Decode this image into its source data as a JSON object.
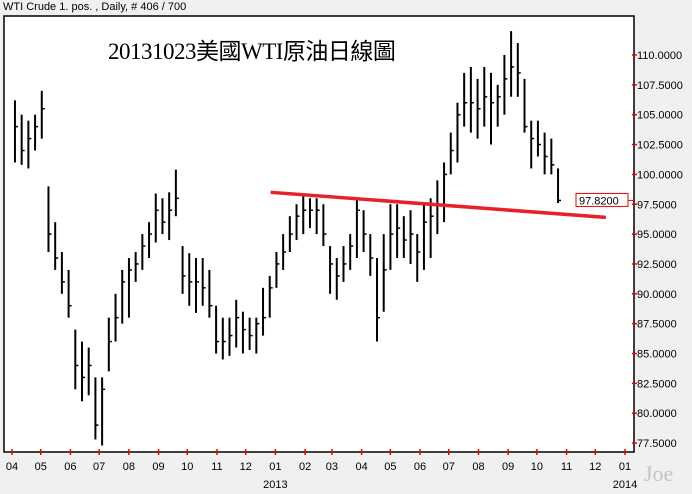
{
  "header": {
    "text": "WTI Crude 1. pos. , Daily, # 406 / 700"
  },
  "watermark": "Joe",
  "chart_data": {
    "type": "ohlc",
    "title": "20131023美國WTI原油日線圖",
    "ylim": [
      76.5,
      113.5
    ],
    "yticks": [
      77.5,
      80,
      82.5,
      85,
      87.5,
      90,
      92.5,
      95,
      97.5,
      100,
      102.5,
      105,
      107.5,
      110
    ],
    "ytick_labels": [
      "77.5000",
      "80.0000",
      "82.5000",
      "85.0000",
      "87.5000",
      "90.0000",
      "92.5000",
      "95.0000",
      "97.5000",
      "100.0000",
      "102.5000",
      "105.0000",
      "107.5000",
      "110.0000"
    ],
    "xticks": [
      {
        "date": "2012-04-01",
        "label": "04"
      },
      {
        "date": "2012-05-01",
        "label": "05"
      },
      {
        "date": "2012-06-01",
        "label": "06"
      },
      {
        "date": "2012-07-01",
        "label": "07"
      },
      {
        "date": "2012-08-01",
        "label": "08"
      },
      {
        "date": "2012-09-01",
        "label": "09"
      },
      {
        "date": "2012-10-01",
        "label": "10"
      },
      {
        "date": "2012-11-01",
        "label": "11"
      },
      {
        "date": "2012-12-01",
        "label": "12"
      },
      {
        "date": "2013-01-01",
        "label": "01"
      },
      {
        "date": "2013-02-01",
        "label": "02"
      },
      {
        "date": "2013-03-01",
        "label": "03"
      },
      {
        "date": "2013-04-01",
        "label": "04"
      },
      {
        "date": "2013-05-01",
        "label": "05"
      },
      {
        "date": "2013-06-01",
        "label": "06"
      },
      {
        "date": "2013-07-01",
        "label": "07"
      },
      {
        "date": "2013-08-01",
        "label": "08"
      },
      {
        "date": "2013-09-01",
        "label": "09"
      },
      {
        "date": "2013-10-01",
        "label": "10"
      },
      {
        "date": "2013-11-01",
        "label": "11"
      },
      {
        "date": "2013-12-01",
        "label": "12"
      },
      {
        "date": "2014-01-01",
        "label": "01"
      }
    ],
    "year_labels": [
      {
        "date": "2013-01-01",
        "label": "2013"
      },
      {
        "date": "2014-01-01",
        "label": "2014"
      }
    ],
    "last_price": {
      "label": "97.8200",
      "value": 97.82
    },
    "trendline": {
      "color": "#e8202a",
      "start": {
        "date": "2012-12-27",
        "value": 98.5
      },
      "end": {
        "date": "2013-12-12",
        "value": 96.4
      }
    },
    "bar_color": "#000000",
    "bars_columns": [
      "date",
      "high",
      "low",
      "close"
    ],
    "bars": [
      [
        "2012-04-02",
        106.2,
        101,
        104
      ],
      [
        "2012-04-09",
        105,
        100.8,
        102
      ],
      [
        "2012-04-16",
        104.5,
        100.5,
        103
      ],
      [
        "2012-04-23",
        105,
        102,
        104
      ],
      [
        "2012-04-30",
        107,
        103,
        105.5
      ],
      [
        "2012-05-07",
        99,
        93.5,
        95
      ],
      [
        "2012-05-14",
        96,
        92,
        93
      ],
      [
        "2012-05-21",
        93.5,
        90,
        91
      ],
      [
        "2012-05-28",
        92,
        88,
        89
      ],
      [
        "2012-06-04",
        87,
        82,
        84
      ],
      [
        "2012-06-11",
        86,
        81,
        83
      ],
      [
        "2012-06-18",
        85.5,
        81.5,
        84
      ],
      [
        "2012-06-25",
        83,
        77.8,
        79
      ],
      [
        "2012-07-02",
        83,
        77.3,
        82
      ],
      [
        "2012-07-09",
        88,
        83.5,
        86
      ],
      [
        "2012-07-16",
        90,
        86,
        88
      ],
      [
        "2012-07-23",
        92,
        87.5,
        91
      ],
      [
        "2012-07-30",
        93,
        88,
        92
      ],
      [
        "2012-08-06",
        93.5,
        91,
        92.5
      ],
      [
        "2012-08-13",
        95,
        92,
        94
      ],
      [
        "2012-08-20",
        96,
        93,
        95
      ],
      [
        "2012-08-27",
        98.4,
        94.3,
        97
      ],
      [
        "2012-09-03",
        98,
        95,
        96
      ],
      [
        "2012-09-10",
        98.5,
        94.5,
        97
      ],
      [
        "2012-09-17",
        100.4,
        96.5,
        98
      ],
      [
        "2012-09-24",
        94,
        90,
        91.5
      ],
      [
        "2012-10-01",
        93.4,
        89,
        91
      ],
      [
        "2012-10-08",
        93,
        88.4,
        91
      ],
      [
        "2012-10-15",
        93,
        89,
        90.5
      ],
      [
        "2012-10-22",
        92,
        88,
        89
      ],
      [
        "2012-10-29",
        89,
        85,
        86
      ],
      [
        "2012-11-05",
        88,
        84.5,
        86
      ],
      [
        "2012-11-12",
        88,
        84.8,
        86.5
      ],
      [
        "2012-11-19",
        89.5,
        85.5,
        88
      ],
      [
        "2012-11-26",
        88.5,
        85,
        87
      ],
      [
        "2012-12-03",
        88,
        85.3,
        86.5
      ],
      [
        "2012-12-10",
        88,
        85,
        87.5
      ],
      [
        "2012-12-17",
        90.5,
        86.5,
        88
      ],
      [
        "2012-12-24",
        91.5,
        88,
        90.5
      ],
      [
        "2012-12-31",
        93.5,
        90.5,
        92.5
      ],
      [
        "2013-01-07",
        95,
        92,
        93.5
      ],
      [
        "2013-01-14",
        96.5,
        93.5,
        95
      ],
      [
        "2013-01-21",
        97.5,
        94.5,
        96.5
      ],
      [
        "2013-01-28",
        98.2,
        95,
        97
      ],
      [
        "2013-02-04",
        98,
        95.5,
        97
      ],
      [
        "2013-02-11",
        98,
        95,
        97
      ],
      [
        "2013-02-18",
        97.5,
        94,
        95
      ],
      [
        "2013-02-25",
        94,
        90,
        92.5
      ],
      [
        "2013-03-04",
        93,
        89.5,
        91.5
      ],
      [
        "2013-03-11",
        94,
        91,
        92.5
      ],
      [
        "2013-03-18",
        95,
        92,
        94
      ],
      [
        "2013-03-25",
        98,
        93,
        97
      ],
      [
        "2013-04-01",
        97,
        93.5,
        95
      ],
      [
        "2013-04-08",
        95,
        91.5,
        93
      ],
      [
        "2013-04-15",
        93,
        86,
        88
      ],
      [
        "2013-04-22",
        95,
        88.5,
        92
      ],
      [
        "2013-04-29",
        97.5,
        92,
        95
      ],
      [
        "2013-05-06",
        97.5,
        93,
        95.5
      ],
      [
        "2013-05-13",
        96.5,
        93,
        94.5
      ],
      [
        "2013-05-20",
        97,
        92.5,
        95
      ],
      [
        "2013-05-27",
        95,
        91,
        93.5
      ],
      [
        "2013-06-03",
        97.5,
        92,
        96
      ],
      [
        "2013-06-10",
        98,
        93,
        96.5
      ],
      [
        "2013-06-17",
        99.5,
        95,
        97.5
      ],
      [
        "2013-06-24",
        101,
        96,
        100
      ],
      [
        "2013-07-01",
        103.5,
        100,
        102
      ],
      [
        "2013-07-08",
        106,
        101,
        105
      ],
      [
        "2013-07-15",
        108.5,
        104,
        106
      ],
      [
        "2013-07-22",
        109,
        103.5,
        106
      ],
      [
        "2013-07-29",
        108,
        103,
        105.5
      ],
      [
        "2013-08-05",
        109,
        104,
        106.5
      ],
      [
        "2013-08-12",
        108.5,
        102.5,
        106
      ],
      [
        "2013-08-19",
        107.5,
        104,
        106.5
      ],
      [
        "2013-08-26",
        110,
        105,
        108
      ],
      [
        "2013-09-02",
        112,
        106.5,
        109
      ],
      [
        "2013-09-09",
        111,
        106.5,
        108.5
      ],
      [
        "2013-09-16",
        108,
        103.5,
        104
      ],
      [
        "2013-09-23",
        104.5,
        100.5,
        103
      ],
      [
        "2013-09-30",
        104.5,
        101.5,
        102.5
      ],
      [
        "2013-10-07",
        103.5,
        100,
        101.5
      ],
      [
        "2013-10-14",
        103,
        100,
        100.8
      ],
      [
        "2013-10-21",
        100.5,
        97.6,
        97.82
      ]
    ]
  }
}
